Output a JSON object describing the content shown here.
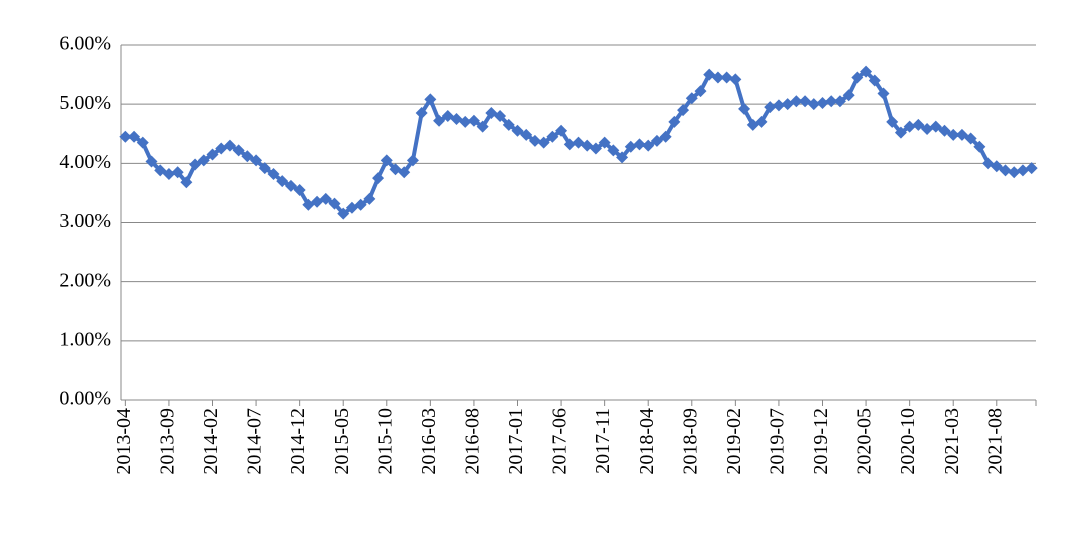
{
  "chart_data": {
    "type": "line",
    "categories": [
      "2013-04",
      null,
      null,
      null,
      null,
      "2013-09",
      null,
      null,
      null,
      null,
      "2014-02",
      null,
      null,
      null,
      null,
      "2014-07",
      null,
      null,
      null,
      null,
      "2014-12",
      null,
      null,
      null,
      null,
      "2015-05",
      null,
      null,
      null,
      null,
      "2015-10",
      null,
      null,
      null,
      null,
      "2016-03",
      null,
      null,
      null,
      null,
      "2016-08",
      null,
      null,
      null,
      null,
      "2017-01",
      null,
      null,
      null,
      null,
      "2017-06",
      null,
      null,
      null,
      null,
      "2017-11",
      null,
      null,
      null,
      null,
      "2018-04",
      null,
      null,
      null,
      null,
      "2018-09",
      null,
      null,
      null,
      null,
      "2019-02",
      null,
      null,
      null,
      null,
      "2019-07",
      null,
      null,
      null,
      null,
      "2019-12",
      null,
      null,
      null,
      null,
      "2020-05",
      null,
      null,
      null,
      null,
      "2020-10",
      null,
      null,
      null,
      null,
      "2021-03",
      null,
      null,
      null,
      null,
      "2021-08",
      null,
      null,
      null,
      null
    ],
    "series": [
      {
        "color": "#4472c4",
        "values": [
          4.45,
          4.45,
          4.35,
          4.03,
          3.88,
          3.82,
          3.85,
          3.68,
          3.98,
          4.05,
          4.15,
          4.25,
          4.3,
          4.22,
          4.12,
          4.05,
          3.92,
          3.82,
          3.7,
          3.62,
          3.55,
          3.3,
          3.35,
          3.4,
          3.32,
          3.15,
          3.25,
          3.3,
          3.4,
          3.75,
          4.05,
          3.9,
          3.85,
          4.05,
          4.85,
          5.08,
          4.72,
          4.8,
          4.75,
          4.7,
          4.72,
          4.62,
          4.85,
          4.8,
          4.65,
          4.55,
          4.48,
          4.38,
          4.35,
          4.45,
          4.55,
          4.32,
          4.35,
          4.3,
          4.25,
          4.35,
          4.22,
          4.1,
          4.28,
          4.32,
          4.3,
          4.38,
          4.45,
          4.7,
          4.9,
          5.1,
          5.22,
          5.5,
          5.45,
          5.45,
          5.42,
          4.92,
          4.65,
          4.7,
          4.95,
          4.98,
          5.0,
          5.05,
          5.05,
          5.0,
          5.02,
          5.05,
          5.05,
          5.15,
          5.45,
          5.55,
          5.4,
          5.18,
          4.7,
          4.52,
          4.62,
          4.65,
          4.58,
          4.62,
          4.55,
          4.48,
          4.48,
          4.42,
          4.28,
          4.0,
          3.95,
          3.88,
          3.85,
          3.88,
          3.92
        ]
      }
    ],
    "ylim": [
      0,
      6
    ],
    "yticks": [
      {
        "value": 0,
        "label": "0.00%"
      },
      {
        "value": 1,
        "label": "1.00%"
      },
      {
        "value": 2,
        "label": "2.00%"
      },
      {
        "value": 3,
        "label": "3.00%"
      },
      {
        "value": 4,
        "label": "4.00%"
      },
      {
        "value": 5,
        "label": "5.00%"
      },
      {
        "value": 6,
        "label": "6.00%"
      }
    ],
    "grid": true
  }
}
